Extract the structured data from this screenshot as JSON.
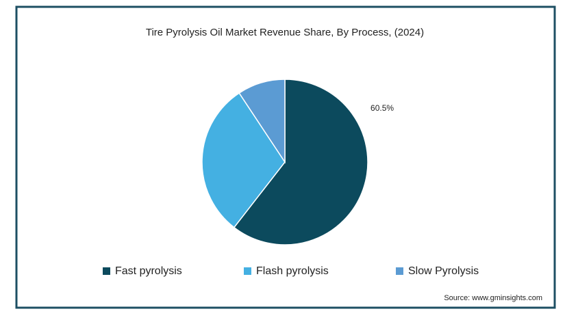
{
  "chart_data": {
    "type": "pie",
    "title": "Tire Pyrolysis Oil Market Revenue Share, By Process, (2024)",
    "categories": [
      "Fast pyrolysis",
      "Flash pyrolysis",
      "Slow Pyrolysis"
    ],
    "values": [
      60.5,
      30.2,
      9.3
    ],
    "value_labels": [
      "60.5%",
      null,
      null
    ],
    "colors": [
      "#0c4a5d",
      "#44b0e2",
      "#5b9bd3"
    ],
    "source": "Source: www.gminsights.com"
  }
}
